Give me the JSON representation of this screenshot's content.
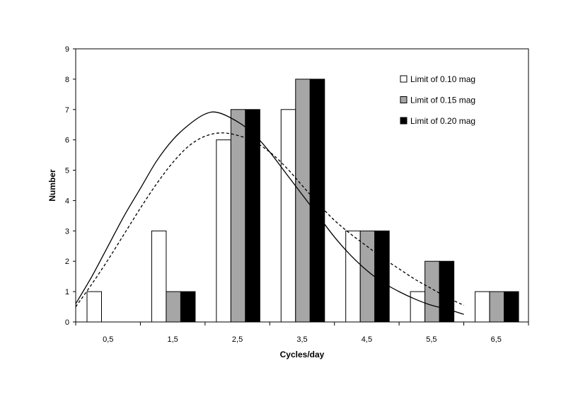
{
  "chart_data": {
    "type": "bar",
    "title": "",
    "xlabel": "Cycles/day",
    "ylabel": "Number",
    "ylim": [
      0,
      9
    ],
    "yticks": [
      "0",
      "1",
      "2",
      "3",
      "4",
      "5",
      "6",
      "7",
      "8",
      "9"
    ],
    "categories": [
      "0,5",
      "1,5",
      "2,5",
      "3,5",
      "4,5",
      "5,5",
      "6,5"
    ],
    "series": [
      {
        "name": "Limit of 0.10 mag",
        "color": "#ffffff",
        "values": [
          1,
          3,
          6,
          7,
          3,
          1,
          1
        ]
      },
      {
        "name": "Limit of 0.15 mag",
        "color": "#a6a6a6",
        "values": [
          0,
          1,
          7,
          8,
          3,
          2,
          1
        ]
      },
      {
        "name": "Limit of 0.20 mag",
        "color": "#000000",
        "values": [
          0,
          1,
          7,
          8,
          3,
          2,
          1
        ]
      }
    ],
    "curves": [
      {
        "name": "fit-solid",
        "style": "solid",
        "x": [
          0,
          0.25,
          0.5,
          0.75,
          1.0,
          1.25,
          1.5,
          1.75,
          2.0,
          2.2,
          2.5,
          2.75,
          3.0,
          3.25,
          3.5,
          3.75,
          4.0,
          4.25,
          4.5,
          4.75,
          5.0,
          5.25,
          5.5,
          5.75,
          6.0
        ],
        "y": [
          0.6,
          1.5,
          2.5,
          3.5,
          4.4,
          5.3,
          6.0,
          6.5,
          6.85,
          6.9,
          6.6,
          6.2,
          5.6,
          4.9,
          4.2,
          3.5,
          2.8,
          2.2,
          1.7,
          1.3,
          1.0,
          0.75,
          0.55,
          0.42,
          0.25
        ]
      },
      {
        "name": "fit-dashed",
        "style": "dashed",
        "x": [
          0,
          0.25,
          0.5,
          0.75,
          1.0,
          1.25,
          1.5,
          1.75,
          2.0,
          2.25,
          2.5,
          2.75,
          3.0,
          3.25,
          3.5,
          3.75,
          4.0,
          4.25,
          4.5,
          4.75,
          5.0,
          5.25,
          5.5,
          5.75,
          6.0
        ],
        "y": [
          0.5,
          1.25,
          2.05,
          2.9,
          3.75,
          4.55,
          5.25,
          5.8,
          6.12,
          6.23,
          6.15,
          5.95,
          5.6,
          5.1,
          4.5,
          3.9,
          3.35,
          2.9,
          2.5,
          2.1,
          1.75,
          1.4,
          1.1,
          0.8,
          0.55
        ]
      }
    ],
    "legend_position": "top-right"
  }
}
